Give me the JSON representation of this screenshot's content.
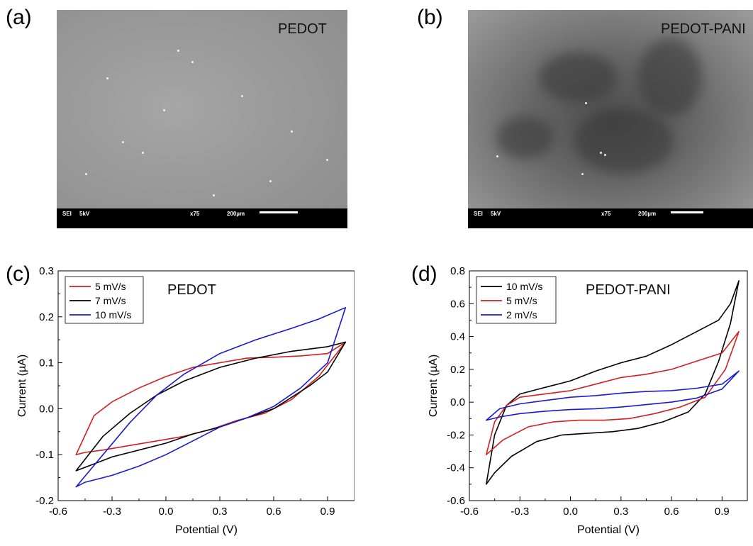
{
  "panels": {
    "a": {
      "letter": "(a)",
      "label": "PEDOT",
      "info_bar": {
        "mode": "SEI",
        "voltage": "5kV",
        "magnification": "x75",
        "scale": "200µm"
      }
    },
    "b": {
      "letter": "(b)",
      "label": "PEDOT-PANI",
      "info_bar": {
        "mode": "SEI",
        "voltage": "5kV",
        "magnification": "x75",
        "scale": "200µm"
      }
    },
    "c": {
      "letter": "(c)"
    },
    "d": {
      "letter": "(d)"
    }
  },
  "colors": {
    "red": "#d21f1f",
    "black": "#000000",
    "blue": "#1a1acf"
  },
  "chart_data": [
    {
      "type": "line",
      "panel": "(c)",
      "title": "PEDOT",
      "xlabel": "Potential (V)",
      "ylabel": "Current (µA)",
      "xlim": [
        -0.6,
        1.05
      ],
      "ylim": [
        -0.2,
        0.3
      ],
      "xticks": [
        "-0.6",
        "-0.3",
        "0.0",
        "0.3",
        "0.6",
        "0.9"
      ],
      "yticks": [
        "-0.2",
        "-0.1",
        "0.0",
        "0.1",
        "0.2",
        "0.3"
      ],
      "legend_position": "top-left",
      "series": [
        {
          "name": "5 mV/s",
          "color": "#d21f1f",
          "x": [
            -0.5,
            -0.4,
            -0.3,
            -0.15,
            0.0,
            0.15,
            0.3,
            0.45,
            0.6,
            0.75,
            0.9,
            1.0,
            0.95,
            0.85,
            0.7,
            0.55,
            0.4,
            0.25,
            0.1,
            -0.05,
            -0.2,
            -0.35,
            -0.45,
            -0.5
          ],
          "y": [
            -0.1,
            -0.015,
            0.015,
            0.045,
            0.07,
            0.09,
            0.1,
            0.11,
            0.112,
            0.115,
            0.12,
            0.145,
            0.12,
            0.07,
            0.02,
            -0.01,
            -0.025,
            -0.045,
            -0.06,
            -0.07,
            -0.08,
            -0.09,
            -0.095,
            -0.1
          ]
        },
        {
          "name": "7 mV/s",
          "color": "#000000",
          "x": [
            -0.5,
            -0.35,
            -0.2,
            -0.05,
            0.1,
            0.3,
            0.5,
            0.7,
            0.9,
            1.0,
            0.9,
            0.8,
            0.6,
            0.45,
            0.3,
            0.15,
            0.0,
            -0.15,
            -0.3,
            -0.4,
            -0.5
          ],
          "y": [
            -0.135,
            -0.06,
            -0.01,
            0.03,
            0.06,
            0.09,
            0.11,
            0.125,
            0.135,
            0.145,
            0.08,
            0.05,
            0.0,
            -0.02,
            -0.04,
            -0.055,
            -0.075,
            -0.09,
            -0.105,
            -0.12,
            -0.135
          ]
        },
        {
          "name": "10 mV/s",
          "color": "#1a1acf",
          "x": [
            -0.5,
            -0.35,
            -0.2,
            -0.05,
            0.1,
            0.3,
            0.5,
            0.7,
            0.85,
            1.0,
            0.9,
            0.75,
            0.6,
            0.45,
            0.3,
            0.15,
            0.0,
            -0.15,
            -0.3,
            -0.45,
            -0.5
          ],
          "y": [
            -0.17,
            -0.1,
            -0.03,
            0.03,
            0.075,
            0.12,
            0.15,
            0.175,
            0.195,
            0.22,
            0.1,
            0.045,
            0.005,
            -0.02,
            -0.04,
            -0.07,
            -0.1,
            -0.125,
            -0.145,
            -0.16,
            -0.17
          ]
        }
      ]
    },
    {
      "type": "line",
      "panel": "(d)",
      "title": "PEDOT-PANI",
      "xlabel": "Potential (V)",
      "ylabel": "Current (µA)",
      "xlim": [
        -0.6,
        1.05
      ],
      "ylim": [
        -0.6,
        0.8
      ],
      "xticks": [
        "-0.6",
        "-0.3",
        "0.0",
        "0.3",
        "0.6",
        "0.9"
      ],
      "yticks": [
        "-0.6",
        "-0.4",
        "-0.2",
        "0.0",
        "0.2",
        "0.4",
        "0.6",
        "0.8"
      ],
      "legend_position": "top-left",
      "series": [
        {
          "name": "10 mV/s",
          "color": "#000000",
          "x": [
            -0.5,
            -0.45,
            -0.38,
            -0.3,
            -0.15,
            0.0,
            0.15,
            0.3,
            0.45,
            0.6,
            0.75,
            0.88,
            0.95,
            1.0,
            0.95,
            0.88,
            0.8,
            0.7,
            0.55,
            0.4,
            0.25,
            0.1,
            -0.05,
            -0.2,
            -0.35,
            -0.45,
            -0.5
          ],
          "y": [
            -0.5,
            -0.2,
            -0.02,
            0.05,
            0.09,
            0.13,
            0.19,
            0.24,
            0.28,
            0.35,
            0.43,
            0.5,
            0.6,
            0.74,
            0.48,
            0.25,
            0.05,
            -0.06,
            -0.12,
            -0.16,
            -0.18,
            -0.19,
            -0.2,
            -0.24,
            -0.33,
            -0.43,
            -0.5
          ]
        },
        {
          "name": "5 mV/s",
          "color": "#d21f1f",
          "x": [
            -0.5,
            -0.45,
            -0.38,
            -0.3,
            -0.15,
            0.0,
            0.15,
            0.3,
            0.45,
            0.6,
            0.75,
            0.9,
            1.0,
            0.92,
            0.8,
            0.65,
            0.5,
            0.35,
            0.2,
            0.05,
            -0.1,
            -0.25,
            -0.4,
            -0.5
          ],
          "y": [
            -0.32,
            -0.12,
            -0.02,
            0.03,
            0.05,
            0.07,
            0.11,
            0.15,
            0.17,
            0.2,
            0.25,
            0.3,
            0.43,
            0.2,
            0.03,
            -0.03,
            -0.07,
            -0.1,
            -0.11,
            -0.11,
            -0.12,
            -0.15,
            -0.23,
            -0.32
          ]
        },
        {
          "name": "2 mV/s",
          "color": "#1a1acf",
          "x": [
            -0.5,
            -0.42,
            -0.3,
            -0.15,
            0.0,
            0.15,
            0.3,
            0.45,
            0.6,
            0.75,
            0.9,
            1.0,
            0.9,
            0.75,
            0.6,
            0.45,
            0.3,
            0.15,
            0.0,
            -0.15,
            -0.3,
            -0.42,
            -0.5
          ],
          "y": [
            -0.11,
            -0.04,
            -0.01,
            0.01,
            0.03,
            0.04,
            0.055,
            0.065,
            0.07,
            0.085,
            0.11,
            0.19,
            0.08,
            0.025,
            0.0,
            -0.015,
            -0.03,
            -0.04,
            -0.045,
            -0.055,
            -0.07,
            -0.09,
            -0.11
          ]
        }
      ]
    }
  ]
}
